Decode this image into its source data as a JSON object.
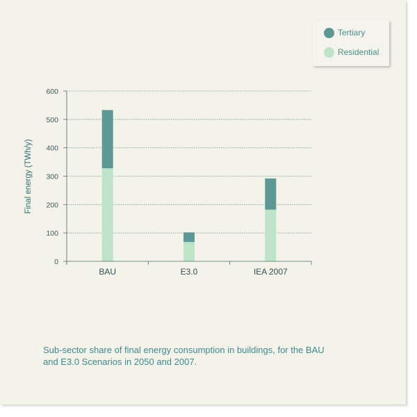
{
  "chart_data": {
    "type": "bar",
    "stacked": true,
    "categories": [
      "BAU",
      "E3.0",
      "IEA 2007"
    ],
    "series": [
      {
        "name": "Residential",
        "values": [
          328,
          68,
          182
        ],
        "color": "#bde3c9"
      },
      {
        "name": "Tertiary",
        "values": [
          205,
          34,
          110
        ],
        "color": "#5c9995"
      }
    ],
    "ylabel": "Final energy (TWh/y)",
    "xlabel": "",
    "ylim": [
      0,
      600
    ],
    "yticks": [
      "0",
      "100",
      "200",
      "300",
      "400",
      "500",
      "600"
    ],
    "grid": true,
    "legend": "top-right"
  },
  "legend": {
    "items": [
      {
        "label": "Tertiary",
        "color": "#5c9995"
      },
      {
        "label": "Residential",
        "color": "#bde3c9"
      }
    ]
  },
  "caption": {
    "line1": "Sub-sector share of final energy consumption in buildings, for the BAU",
    "line2": "and E3.0 Scenarios in 2050 and 2007."
  },
  "colors": {
    "background": "#f3f3ea",
    "axis": "#4a6b6b",
    "grid": "#7a9a9a"
  }
}
